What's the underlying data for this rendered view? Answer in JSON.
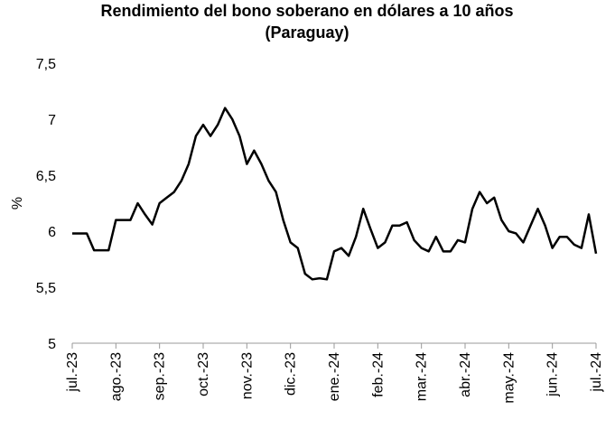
{
  "chart_data": {
    "type": "line",
    "title": "Rendimiento del bono soberano en dólares a 10 años",
    "subtitle": "(Paraguay)",
    "y_label": "%",
    "categories": [
      "jul.-23",
      null,
      null,
      null,
      null,
      null,
      "ago.-23",
      null,
      null,
      null,
      null,
      null,
      "sep.-23",
      null,
      null,
      null,
      null,
      null,
      "oct.-23",
      null,
      null,
      null,
      null,
      null,
      "nov.-23",
      null,
      null,
      null,
      null,
      null,
      "dic.-23",
      null,
      null,
      null,
      null,
      null,
      "ene.-24",
      null,
      null,
      null,
      null,
      null,
      "feb.-24",
      null,
      null,
      null,
      null,
      null,
      "mar.-24",
      null,
      null,
      null,
      null,
      null,
      "abr.-24",
      null,
      null,
      null,
      null,
      null,
      "may.-24",
      null,
      null,
      null,
      null,
      null,
      "jun.-24",
      null,
      null,
      null,
      null,
      null,
      "jul.-24"
    ],
    "series": [
      {
        "name": "Rendimiento",
        "color": "#000000",
        "values": [
          5.98,
          5.98,
          5.98,
          5.83,
          5.83,
          5.83,
          6.1,
          6.1,
          6.1,
          6.25,
          6.15,
          6.06,
          6.25,
          6.3,
          6.35,
          6.45,
          6.6,
          6.85,
          6.95,
          6.85,
          6.95,
          7.1,
          7.0,
          6.85,
          6.6,
          6.72,
          6.6,
          6.45,
          6.35,
          6.1,
          5.9,
          5.85,
          5.62,
          5.57,
          5.58,
          5.57,
          5.82,
          5.85,
          5.78,
          5.95,
          6.2,
          6.02,
          5.85,
          5.9,
          6.05,
          6.05,
          6.08,
          5.92,
          5.85,
          5.82,
          5.95,
          5.82,
          5.82,
          5.92,
          5.9,
          6.2,
          6.35,
          6.25,
          6.3,
          6.1,
          6.0,
          5.98,
          5.9,
          6.05,
          6.2,
          6.05,
          5.85,
          5.95,
          5.95,
          5.88,
          5.85,
          6.15,
          5.8
        ]
      }
    ],
    "ylim": [
      5,
      7.5
    ],
    "yticks": [
      5,
      {
        "value": 5.5,
        "label": "5,5"
      },
      6,
      {
        "value": 6.5,
        "label": "6,5"
      },
      7,
      {
        "value": 7.5,
        "label": "7,5"
      }
    ],
    "grid": false
  }
}
